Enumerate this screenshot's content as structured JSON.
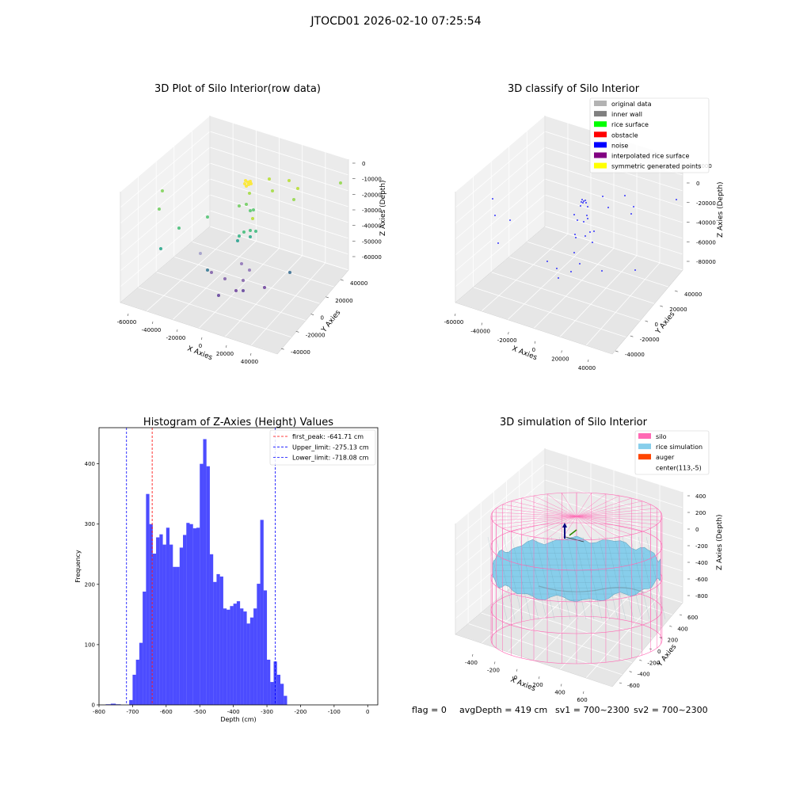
{
  "figure": {
    "suptitle": "JTOCD01 2026-02-10 07:25:54"
  },
  "chart_data": [
    {
      "type": "scatter",
      "projection": "3d",
      "title": "3D Plot of Silo Interior(row data)",
      "xlabel": "X Axies",
      "ylabel": "Y Axies",
      "zlabel": "Z Axies (Depth)",
      "x_ticks": [
        "-60000",
        "-40000",
        "-20000",
        "0",
        "20000",
        "40000"
      ],
      "y_ticks": [
        "-40000",
        "-20000",
        "0",
        "20000",
        "40000"
      ],
      "z_ticks": [
        "0",
        "-10000",
        "-20000",
        "-30000",
        "-40000",
        "-50000",
        "-60000"
      ],
      "colormap": "viridis (colored by depth)",
      "grid": true
    },
    {
      "type": "scatter",
      "projection": "3d",
      "title": "3D classify of Silo Interior",
      "xlabel": "X Axies",
      "ylabel": "Y Axies",
      "zlabel": "Z Axies (Depth)",
      "x_ticks": [
        "-60000",
        "-40000",
        "-20000",
        "0",
        "20000",
        "40000"
      ],
      "y_ticks": [
        "-40000",
        "-20000",
        "0",
        "20000",
        "40000"
      ],
      "z_ticks": [
        "0",
        "-20000",
        "-40000",
        "-60000",
        "-80000"
      ],
      "z_top_partial": "0000",
      "legend_position": "top-right",
      "legend": [
        {
          "label": "original data",
          "color": "#b3b3b3"
        },
        {
          "label": "inner wall",
          "color": "#808080"
        },
        {
          "label": "rice surface",
          "color": "#00ff00"
        },
        {
          "label": "obstacle",
          "color": "#ff0000"
        },
        {
          "label": "noise",
          "color": "#0000ff"
        },
        {
          "label": "interpolated rice surface",
          "color": "#800080"
        },
        {
          "label": "symmetric generated points",
          "color": "#ffff00"
        }
      ],
      "grid": true
    },
    {
      "type": "histogram",
      "title": "Histogram of Z-Axies (Height) Values",
      "xlabel": "Depth (cm)",
      "ylabel": "Frequency",
      "xlim": [
        -800,
        30
      ],
      "ylim": [
        0,
        460
      ],
      "x_ticks": [
        -800,
        -700,
        -600,
        -500,
        -400,
        -300,
        -200,
        -100,
        0
      ],
      "y_ticks": [
        0,
        100,
        200,
        300,
        400
      ],
      "bar_color": "#0000ff",
      "bins": [
        [
          -780,
          -765,
          1
        ],
        [
          -765,
          -750,
          2
        ],
        [
          -750,
          -735,
          1
        ],
        [
          -735,
          -720,
          0
        ],
        [
          -720,
          -710,
          0
        ],
        [
          -710,
          -700,
          8
        ],
        [
          -700,
          -690,
          50
        ],
        [
          -690,
          -680,
          75
        ],
        [
          -680,
          -670,
          103
        ],
        [
          -670,
          -660,
          188
        ],
        [
          -660,
          -650,
          350
        ],
        [
          -650,
          -640,
          300
        ],
        [
          -640,
          -630,
          251
        ],
        [
          -630,
          -620,
          278
        ],
        [
          -620,
          -610,
          283
        ],
        [
          -610,
          -600,
          266
        ],
        [
          -600,
          -590,
          294
        ],
        [
          -590,
          -580,
          266
        ],
        [
          -580,
          -570,
          229
        ],
        [
          -570,
          -560,
          229
        ],
        [
          -560,
          -550,
          261
        ],
        [
          -550,
          -540,
          282
        ],
        [
          -540,
          -530,
          302
        ],
        [
          -530,
          -520,
          300
        ],
        [
          -520,
          -510,
          293
        ],
        [
          -510,
          -500,
          294
        ],
        [
          -500,
          -490,
          400
        ],
        [
          -490,
          -480,
          441
        ],
        [
          -480,
          -470,
          396
        ],
        [
          -470,
          -460,
          250
        ],
        [
          -460,
          -450,
          204
        ],
        [
          -450,
          -440,
          217
        ],
        [
          -440,
          -430,
          213
        ],
        [
          -430,
          -420,
          160
        ],
        [
          -420,
          -410,
          158
        ],
        [
          -410,
          -400,
          164
        ],
        [
          -400,
          -390,
          168
        ],
        [
          -390,
          -380,
          172
        ],
        [
          -380,
          -370,
          160
        ],
        [
          -370,
          -360,
          155
        ],
        [
          -360,
          -350,
          135
        ],
        [
          -350,
          -340,
          145
        ],
        [
          -340,
          -330,
          160
        ],
        [
          -330,
          -320,
          201
        ],
        [
          -320,
          -310,
          307
        ],
        [
          -310,
          -300,
          190
        ],
        [
          -300,
          -290,
          75
        ],
        [
          -290,
          -280,
          38
        ],
        [
          -280,
          -270,
          72
        ],
        [
          -270,
          -260,
          50
        ],
        [
          -260,
          -250,
          35
        ],
        [
          -250,
          -240,
          15
        ]
      ],
      "vlines": [
        {
          "x": -641.71,
          "color": "#ff0000",
          "label": "first_peak: -641.71 cm"
        },
        {
          "x": -275.13,
          "color": "#0000ff",
          "label": "Upper_limit: -275.13 cm"
        },
        {
          "x": -718.08,
          "color": "#0000ff",
          "label": "Lower_limit: -718.08 cm"
        }
      ],
      "legend_position": "top-right",
      "grid": false
    },
    {
      "type": "surface",
      "projection": "3d",
      "title": "3D simulation of Silo Interior",
      "xlabel": "X Axies",
      "ylabel": "Y Axies",
      "zlabel": "Z Axies (Depth)",
      "x_ticks": [
        "-400",
        "-200",
        "0",
        "200",
        "400",
        "600"
      ],
      "y_ticks": [
        "-600",
        "-400",
        "-200",
        "0",
        "200",
        "400",
        "600"
      ],
      "z_ticks": [
        "400",
        "200",
        "0",
        "-200",
        "-400",
        "-600",
        "-800"
      ],
      "legend_position": "top-right",
      "legend": [
        {
          "label": "silo",
          "color": "#ff69b4"
        },
        {
          "label": "rice simulation",
          "color": "#87ceeb"
        },
        {
          "label": "auger",
          "color": "#ff4500"
        },
        {
          "label": "center(113,-5)",
          "color": "#ffffff"
        }
      ],
      "grid": true
    }
  ],
  "status": {
    "flag": "flag = 0",
    "avg_depth": "avgDepth = 419 cm",
    "sv1": "sv1 = 700~2300",
    "sv2": "sv2 = 700~2300"
  }
}
